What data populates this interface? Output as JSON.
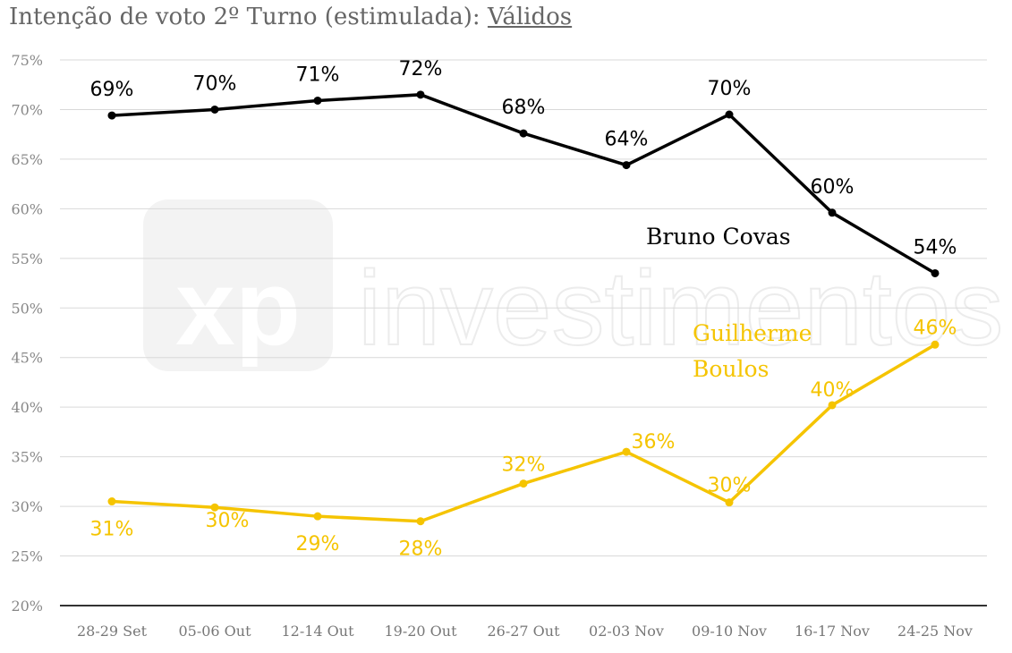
{
  "chart_data": {
    "type": "line",
    "title": "Intenção de voto 2º Turno (estimulada): ",
    "title_underlined": "Válidos",
    "categories": [
      "28-29 Set",
      "05-06 Out",
      "12-14 Out",
      "19-20 Out",
      "26-27 Out",
      "02-03 Nov",
      "09-10 Nov",
      "16-17 Nov",
      "24-25 Nov"
    ],
    "ylim": [
      20,
      75
    ],
    "yticks": [
      "20%",
      "25%",
      "30%",
      "35%",
      "40%",
      "45%",
      "50%",
      "55%",
      "60%",
      "65%",
      "70%",
      "75%"
    ],
    "grid": true,
    "series": [
      {
        "name": "Bruno Covas",
        "color": "#000000",
        "values": [
          69.4,
          70.0,
          70.9,
          71.5,
          67.6,
          64.4,
          69.5,
          59.6,
          53.5
        ],
        "labels": [
          "69%",
          "70%",
          "71%",
          "72%",
          "68%",
          "64%",
          "70%",
          "60%",
          "54%"
        ]
      },
      {
        "name": "Guilherme Boulos",
        "name_lines": [
          "Guilherme",
          "Boulos"
        ],
        "color": "#F5C400",
        "values": [
          30.5,
          29.9,
          29.0,
          28.5,
          32.3,
          35.5,
          30.4,
          40.2,
          46.3
        ],
        "labels": [
          "31%",
          "30%",
          "29%",
          "28%",
          "32%",
          "36%",
          "30%",
          "40%",
          "46%"
        ]
      }
    ]
  },
  "watermark": "xp investimentos"
}
